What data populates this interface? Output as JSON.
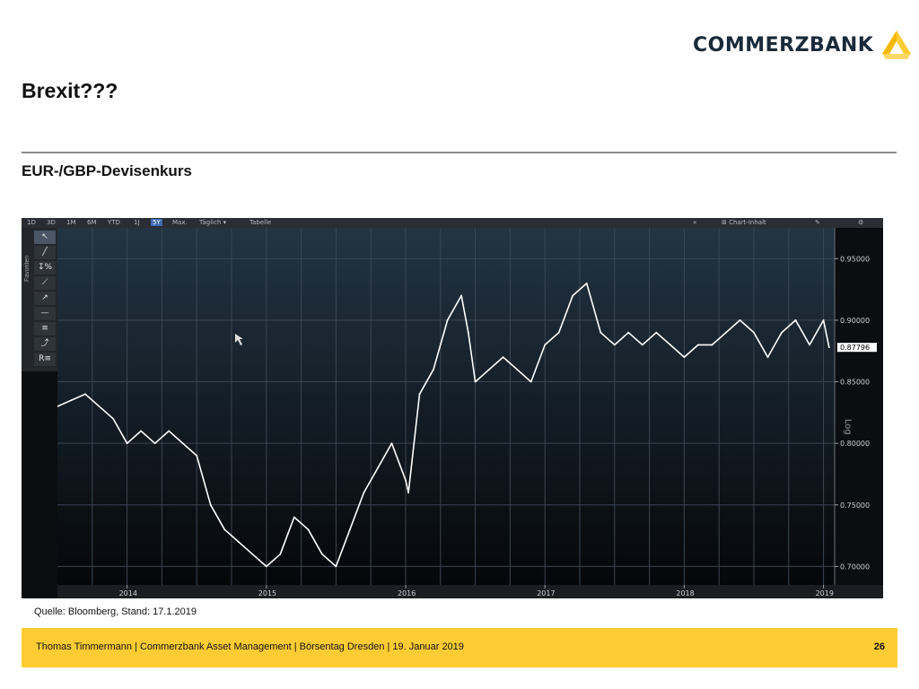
{
  "brand": {
    "name": "COMMERZBANK",
    "accent": "#ffcc33"
  },
  "slide": {
    "title": "Brexit???",
    "subtitle": "EUR-/GBP-Devisenkurs",
    "source": "Quelle: Bloomberg, Stand: 17.1.2019",
    "footer": "Thomas Timmermann | Commerzbank Asset Management | Börsentag Dresden | 19. Januar 2019",
    "page_number": "26"
  },
  "toolbar": {
    "items": [
      "1D",
      "3D",
      "1M",
      "6M",
      "YTD",
      "1J",
      "5Y",
      "Max.",
      "Täglich ▾",
      "Tabelle"
    ],
    "active": "5Y",
    "right_label": "Chart-Inhalt"
  },
  "sidebar": {
    "label": "Favoriten"
  },
  "chart_data": {
    "type": "line",
    "x_tick_labels": [
      "2014",
      "2015",
      "2016",
      "2017",
      "2018",
      "2019"
    ],
    "y_tick_labels": [
      "0.70000",
      "0.75000",
      "0.80000",
      "0.85000",
      "0.90000",
      "0.95000"
    ],
    "ylim": [
      0.685,
      0.975
    ],
    "xlim": [
      2013.5,
      2019.08
    ],
    "last_value": "0.87796",
    "scale_label": "Log",
    "series": [
      {
        "x": [
          2013.5,
          2013.6,
          2013.7,
          2013.9,
          2014.0,
          2014.1,
          2014.2,
          2014.3,
          2014.4,
          2014.5,
          2014.6,
          2014.7,
          2014.8,
          2014.9,
          2015.0,
          2015.1,
          2015.2,
          2015.3,
          2015.4,
          2015.5,
          2015.6,
          2015.7,
          2015.8,
          2015.9,
          2016.0,
          2016.02,
          2016.1,
          2016.2,
          2016.3,
          2016.4,
          2016.45,
          2016.5,
          2016.6,
          2016.7,
          2016.8,
          2016.9,
          2017.0,
          2017.1,
          2017.2,
          2017.3,
          2017.4,
          2017.5,
          2017.6,
          2017.7,
          2017.8,
          2017.9,
          2018.0,
          2018.1,
          2018.2,
          2018.3,
          2018.4,
          2018.5,
          2018.6,
          2018.7,
          2018.8,
          2018.9,
          2019.0,
          2019.04
        ],
        "y": [
          0.83,
          0.835,
          0.84,
          0.82,
          0.8,
          0.81,
          0.8,
          0.81,
          0.8,
          0.79,
          0.75,
          0.73,
          0.72,
          0.71,
          0.7,
          0.71,
          0.74,
          0.73,
          0.71,
          0.7,
          0.73,
          0.76,
          0.78,
          0.8,
          0.77,
          0.76,
          0.84,
          0.86,
          0.9,
          0.92,
          0.89,
          0.85,
          0.86,
          0.87,
          0.86,
          0.85,
          0.88,
          0.89,
          0.92,
          0.93,
          0.89,
          0.88,
          0.89,
          0.88,
          0.89,
          0.88,
          0.87,
          0.88,
          0.88,
          0.89,
          0.9,
          0.89,
          0.87,
          0.89,
          0.9,
          0.88,
          0.9,
          0.878
        ],
        "color": "#ffffff"
      }
    ]
  }
}
